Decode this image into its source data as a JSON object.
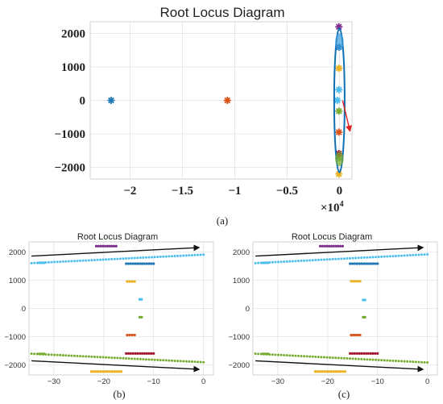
{
  "chart_data": [
    {
      "panel": "a",
      "type": "scatter",
      "title": "Root Locus Diagram",
      "caption": "(a)",
      "xlim": [
        -2.38,
        0.12
      ],
      "ylim": [
        -2350,
        2350
      ],
      "xticks": [
        -2,
        -1.5,
        -1,
        -0.5,
        0
      ],
      "xtick_labels": [
        "−2",
        "−1.5",
        "−1",
        "−0.5",
        "0"
      ],
      "yticks": [
        -2000,
        -1000,
        0,
        1000,
        2000
      ],
      "ytick_labels": [
        "−2000",
        "−1000",
        "0",
        "1000",
        "2000"
      ],
      "x_exponent": "×10",
      "x_exponent_power": "4",
      "grid": true,
      "series": [
        {
          "color": "#1f77b4",
          "marker": "star",
          "points": [
            [
              -2.18,
              0
            ],
            [
              -0.005,
              1590
            ]
          ]
        },
        {
          "color": "#d95319",
          "marker": "star",
          "points": [
            [
              -1.07,
              0
            ],
            [
              -0.005,
              -950
            ]
          ]
        },
        {
          "color": "#7e2f8e",
          "marker": "star",
          "points": [
            [
              -0.005,
              2200
            ]
          ]
        },
        {
          "color": "#edb120",
          "marker": "star",
          "points": [
            [
              -0.005,
              960
            ],
            [
              -0.005,
              -2200
            ]
          ]
        },
        {
          "color": "#4dbeee",
          "marker": "star",
          "points": [
            [
              -0.005,
              320
            ],
            [
              -0.02,
              0
            ]
          ]
        },
        {
          "color": "#77ac30",
          "marker": "star",
          "points": [
            [
              -0.005,
              -320
            ],
            [
              -0.005,
              -1720
            ]
          ]
        },
        {
          "color": "#a2142f",
          "marker": "star",
          "points": [
            [
              -0.005,
              -1590
            ]
          ]
        }
      ],
      "annotations": [
        {
          "type": "ellipse",
          "color": "#0f6fb5",
          "cx": 0.0,
          "cy": 0,
          "rx": 0.05,
          "ry": 2150
        },
        {
          "type": "arrow",
          "color": "#e02020",
          "from": [
            0.03,
            0
          ],
          "to": [
            0.1,
            -900
          ]
        }
      ]
    },
    {
      "panel": "b",
      "type": "scatter",
      "title": "Root Locus Diagram",
      "caption": "(b)",
      "xlim": [
        -35,
        2
      ],
      "ylim": [
        -2350,
        2350
      ],
      "xticks": [
        -30,
        -20,
        -10,
        0
      ],
      "xtick_labels": [
        "−30",
        "−20",
        "−10",
        "0"
      ],
      "yticks": [
        -2000,
        -1000,
        0,
        1000,
        2000
      ],
      "ytick_labels": [
        "−2000",
        "−1000",
        "0",
        "1000",
        "2000"
      ],
      "grid": true,
      "series": [
        {
          "color": "#4dbeee",
          "kind": "line",
          "from": [
            -34.5,
            1600
          ],
          "to": [
            0,
            1900
          ]
        },
        {
          "color": "#4dbeee",
          "kind": "cluster",
          "x": [
            -33,
            -32
          ],
          "y": 1610
        },
        {
          "color": "#77ac30",
          "kind": "line",
          "from": [
            -34.5,
            -1600
          ],
          "to": [
            0,
            -1900
          ]
        },
        {
          "color": "#77ac30",
          "kind": "cluster",
          "x": [
            -33,
            -32
          ],
          "y": -1600
        },
        {
          "color": "#7e2f8e",
          "kind": "cluster",
          "x": [
            -21.5,
            -17.5
          ],
          "y": 2200
        },
        {
          "color": "#1f77b4",
          "kind": "cluster",
          "x": [
            -15.5,
            -10
          ],
          "y": 1580
        },
        {
          "color": "#edb120",
          "kind": "cluster",
          "x": [
            -15.3,
            -13.8
          ],
          "y": 950
        },
        {
          "color": "#4dbeee",
          "kind": "cluster",
          "x": [
            -12.8,
            -12.4
          ],
          "y": 320
        },
        {
          "color": "#77ac30",
          "kind": "cluster",
          "x": [
            -12.8,
            -12.4
          ],
          "y": -310
        },
        {
          "color": "#d95319",
          "kind": "cluster",
          "x": [
            -15.3,
            -13.8
          ],
          "y": -940
        },
        {
          "color": "#a2142f",
          "kind": "cluster",
          "x": [
            -15.5,
            -10
          ],
          "y": -1590
        },
        {
          "color": "#edb120",
          "kind": "cluster",
          "x": [
            -22.5,
            -16.5
          ],
          "y": -2230
        }
      ],
      "annotations": [
        {
          "type": "arrow",
          "color": "#111111",
          "from": [
            -34.5,
            1850
          ],
          "to": [
            -1,
            2150
          ]
        },
        {
          "type": "arrow",
          "color": "#111111",
          "from": [
            -34.5,
            -1850
          ],
          "to": [
            -1,
            -2150
          ]
        }
      ]
    },
    {
      "panel": "c",
      "type": "scatter",
      "title": "Root Locus Diagram",
      "caption": "(c)",
      "xlim": [
        -35,
        2
      ],
      "ylim": [
        -2350,
        2350
      ],
      "xticks": [
        -30,
        -20,
        -10,
        0
      ],
      "xtick_labels": [
        "−30",
        "−20",
        "−10",
        "0"
      ],
      "yticks": [
        -2000,
        -1000,
        0,
        1000,
        2000
      ],
      "ytick_labels": [
        "−2000",
        "−1000",
        "0",
        "1000",
        "2000"
      ],
      "grid": true,
      "series": [
        {
          "color": "#4dbeee",
          "kind": "line",
          "from": [
            -34.5,
            1600
          ],
          "to": [
            0,
            1910
          ]
        },
        {
          "color": "#4dbeee",
          "kind": "cluster",
          "x": [
            -33,
            -32
          ],
          "y": 1610
        },
        {
          "color": "#77ac30",
          "kind": "line",
          "from": [
            -34.5,
            -1600
          ],
          "to": [
            0,
            -1910
          ]
        },
        {
          "color": "#77ac30",
          "kind": "cluster",
          "x": [
            -33,
            -32
          ],
          "y": -1600
        },
        {
          "color": "#7e2f8e",
          "kind": "cluster",
          "x": [
            -21.5,
            -17
          ],
          "y": 2200
        },
        {
          "color": "#1f77b4",
          "kind": "cluster",
          "x": [
            -15.5,
            -10
          ],
          "y": 1580
        },
        {
          "color": "#edb120",
          "kind": "cluster",
          "x": [
            -15.3,
            -13.5
          ],
          "y": 960
        },
        {
          "color": "#4dbeee",
          "kind": "cluster",
          "x": [
            -12.9,
            -12.5
          ],
          "y": 300
        },
        {
          "color": "#77ac30",
          "kind": "cluster",
          "x": [
            -12.9,
            -12.5
          ],
          "y": -310
        },
        {
          "color": "#d95319",
          "kind": "cluster",
          "x": [
            -15.3,
            -13.5
          ],
          "y": -940
        },
        {
          "color": "#a2142f",
          "kind": "cluster",
          "x": [
            -15.5,
            -10
          ],
          "y": -1590
        },
        {
          "color": "#edb120",
          "kind": "cluster",
          "x": [
            -22.5,
            -16.5
          ],
          "y": -2230
        }
      ],
      "annotations": [
        {
          "type": "arrow",
          "color": "#111111",
          "from": [
            -34.5,
            1850
          ],
          "to": [
            -1,
            2150
          ]
        },
        {
          "type": "arrow",
          "color": "#111111",
          "from": [
            -34.5,
            -1850
          ],
          "to": [
            -1,
            -2150
          ]
        }
      ]
    }
  ]
}
